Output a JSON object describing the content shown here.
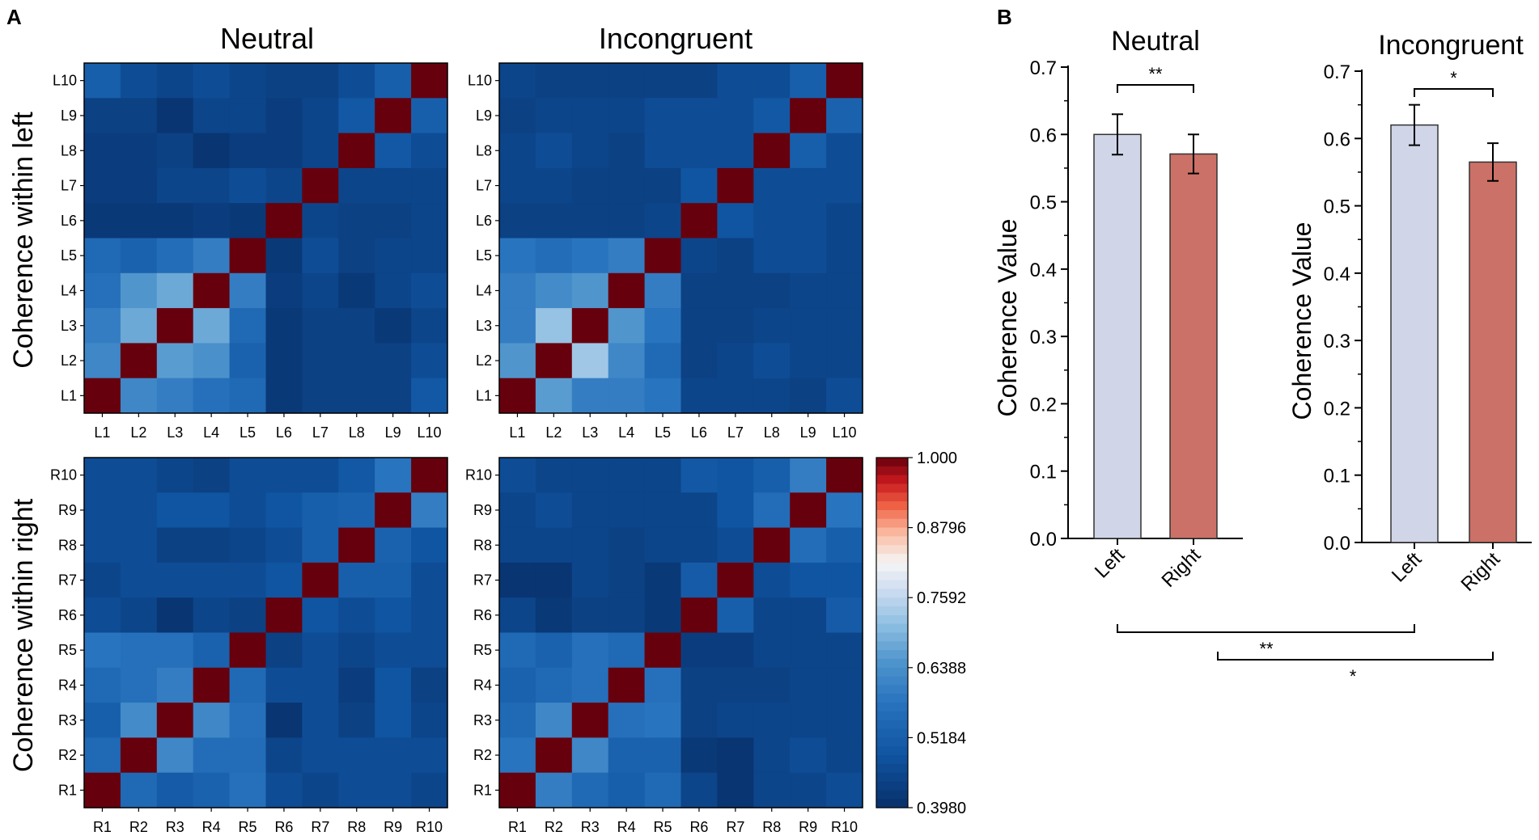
{
  "figure": {
    "panel_a_label": "A",
    "panel_b_label": "B"
  },
  "colors": {
    "bar_left": "#d0d5e8",
    "bar_right": "#cc7167"
  },
  "chart_data": [
    {
      "type": "heatmap",
      "title": "Neutral",
      "ylabel": "Coherence within left",
      "labels": [
        "L1",
        "L2",
        "L3",
        "L4",
        "L5",
        "L6",
        "L7",
        "L8",
        "L9",
        "L10"
      ],
      "matrix_rows_top_to_bottom": [
        [
          0.52,
          0.47,
          0.45,
          0.47,
          0.45,
          0.44,
          0.44,
          0.47,
          0.52,
          1.0
        ],
        [
          0.44,
          0.44,
          0.41,
          0.45,
          0.45,
          0.43,
          0.45,
          0.5,
          1.0,
          0.52
        ],
        [
          0.43,
          0.43,
          0.44,
          0.41,
          0.43,
          0.43,
          0.45,
          1.0,
          0.5,
          0.47
        ],
        [
          0.43,
          0.43,
          0.45,
          0.45,
          0.47,
          0.45,
          1.0,
          0.45,
          0.45,
          0.45
        ],
        [
          0.42,
          0.42,
          0.42,
          0.43,
          0.42,
          1.0,
          0.45,
          0.44,
          0.44,
          0.45
        ],
        [
          0.55,
          0.53,
          0.56,
          0.6,
          1.0,
          0.42,
          0.47,
          0.44,
          0.45,
          0.45
        ],
        [
          0.57,
          0.65,
          0.68,
          1.0,
          0.6,
          0.43,
          0.45,
          0.42,
          0.45,
          0.47
        ],
        [
          0.6,
          0.68,
          1.0,
          0.68,
          0.55,
          0.42,
          0.44,
          0.44,
          0.42,
          0.45
        ],
        [
          0.62,
          1.0,
          0.66,
          0.64,
          0.53,
          0.42,
          0.44,
          0.44,
          0.44,
          0.47
        ],
        [
          1.0,
          0.62,
          0.6,
          0.57,
          0.55,
          0.42,
          0.44,
          0.44,
          0.44,
          0.5
        ]
      ]
    },
    {
      "type": "heatmap",
      "title": "Incongruent",
      "ylabel": "",
      "labels": [
        "L1",
        "L2",
        "L3",
        "L4",
        "L5",
        "L6",
        "L7",
        "L8",
        "L9",
        "L10"
      ],
      "matrix_rows_top_to_bottom": [
        [
          0.45,
          0.44,
          0.44,
          0.44,
          0.44,
          0.44,
          0.47,
          0.47,
          0.52,
          1.0
        ],
        [
          0.44,
          0.45,
          0.45,
          0.45,
          0.47,
          0.47,
          0.47,
          0.5,
          1.0,
          0.53
        ],
        [
          0.45,
          0.47,
          0.45,
          0.44,
          0.47,
          0.47,
          0.47,
          1.0,
          0.52,
          0.47
        ],
        [
          0.45,
          0.45,
          0.44,
          0.44,
          0.44,
          0.49,
          1.0,
          0.47,
          0.47,
          0.47
        ],
        [
          0.44,
          0.44,
          0.44,
          0.44,
          0.45,
          1.0,
          0.49,
          0.47,
          0.47,
          0.45
        ],
        [
          0.58,
          0.56,
          0.58,
          0.6,
          1.0,
          0.45,
          0.44,
          0.47,
          0.47,
          0.45
        ],
        [
          0.6,
          0.63,
          0.65,
          1.0,
          0.6,
          0.44,
          0.44,
          0.44,
          0.45,
          0.45
        ],
        [
          0.6,
          0.72,
          1.0,
          0.65,
          0.58,
          0.44,
          0.44,
          0.45,
          0.45,
          0.45
        ],
        [
          0.65,
          1.0,
          0.73,
          0.62,
          0.55,
          0.44,
          0.45,
          0.47,
          0.45,
          0.45
        ],
        [
          1.0,
          0.66,
          0.6,
          0.6,
          0.58,
          0.45,
          0.45,
          0.45,
          0.44,
          0.47
        ]
      ]
    },
    {
      "type": "heatmap",
      "title": "",
      "ylabel": "Coherence within right",
      "labels": [
        "R1",
        "R2",
        "R3",
        "R4",
        "R5",
        "R6",
        "R7",
        "R8",
        "R9",
        "R10"
      ],
      "matrix_rows_top_to_bottom": [
        [
          0.47,
          0.47,
          0.45,
          0.44,
          0.47,
          0.47,
          0.47,
          0.5,
          0.58,
          1.0
        ],
        [
          0.47,
          0.47,
          0.49,
          0.49,
          0.47,
          0.49,
          0.52,
          0.53,
          1.0,
          0.6
        ],
        [
          0.47,
          0.47,
          0.44,
          0.44,
          0.45,
          0.47,
          0.52,
          1.0,
          0.53,
          0.49
        ],
        [
          0.45,
          0.47,
          0.47,
          0.47,
          0.47,
          0.49,
          1.0,
          0.52,
          0.52,
          0.47
        ],
        [
          0.47,
          0.45,
          0.41,
          0.45,
          0.44,
          1.0,
          0.49,
          0.47,
          0.49,
          0.47
        ],
        [
          0.58,
          0.57,
          0.57,
          0.53,
          1.0,
          0.44,
          0.47,
          0.45,
          0.47,
          0.47
        ],
        [
          0.55,
          0.57,
          0.6,
          1.0,
          0.55,
          0.47,
          0.47,
          0.43,
          0.49,
          0.44
        ],
        [
          0.52,
          0.63,
          1.0,
          0.62,
          0.57,
          0.41,
          0.47,
          0.44,
          0.49,
          0.45
        ],
        [
          0.55,
          1.0,
          0.62,
          0.56,
          0.56,
          0.45,
          0.47,
          0.47,
          0.47,
          0.47
        ],
        [
          1.0,
          0.55,
          0.51,
          0.53,
          0.57,
          0.47,
          0.45,
          0.47,
          0.47,
          0.45
        ]
      ]
    },
    {
      "type": "heatmap",
      "title": "",
      "ylabel": "",
      "labels": [
        "R1",
        "R2",
        "R3",
        "R4",
        "R5",
        "R6",
        "R7",
        "R8",
        "R9",
        "R10"
      ],
      "matrix_rows_top_to_bottom": [
        [
          0.47,
          0.45,
          0.45,
          0.45,
          0.45,
          0.5,
          0.49,
          0.52,
          0.6,
          1.0
        ],
        [
          0.45,
          0.47,
          0.45,
          0.45,
          0.45,
          0.45,
          0.49,
          0.56,
          1.0,
          0.58
        ],
        [
          0.45,
          0.45,
          0.45,
          0.44,
          0.45,
          0.45,
          0.47,
          1.0,
          0.56,
          0.52
        ],
        [
          0.41,
          0.41,
          0.45,
          0.44,
          0.42,
          0.51,
          1.0,
          0.47,
          0.49,
          0.49
        ],
        [
          0.45,
          0.42,
          0.44,
          0.44,
          0.42,
          1.0,
          0.52,
          0.45,
          0.45,
          0.51
        ],
        [
          0.55,
          0.53,
          0.57,
          0.55,
          1.0,
          0.43,
          0.43,
          0.45,
          0.45,
          0.45
        ],
        [
          0.53,
          0.55,
          0.57,
          1.0,
          0.57,
          0.44,
          0.44,
          0.44,
          0.45,
          0.45
        ],
        [
          0.55,
          0.62,
          1.0,
          0.57,
          0.58,
          0.44,
          0.45,
          0.45,
          0.45,
          0.45
        ],
        [
          0.58,
          1.0,
          0.62,
          0.53,
          0.53,
          0.42,
          0.41,
          0.45,
          0.47,
          0.45
        ],
        [
          1.0,
          0.6,
          0.55,
          0.52,
          0.55,
          0.45,
          0.41,
          0.45,
          0.45,
          0.47
        ]
      ]
    },
    {
      "type": "bar",
      "title": "Neutral",
      "ylabel": "Coherence Value",
      "categories": [
        "Left",
        "Right"
      ],
      "values": [
        0.6,
        0.571
      ],
      "errors": [
        0.03,
        0.029
      ],
      "ylim": [
        0.0,
        0.7
      ],
      "yticks": [
        "0.0",
        "0.1",
        "0.2",
        "0.3",
        "0.4",
        "0.5",
        "0.6",
        "0.7"
      ],
      "significance": "**"
    },
    {
      "type": "bar",
      "title": "Incongruent",
      "ylabel": "Coherence Value",
      "categories": [
        "Left",
        "Right"
      ],
      "values": [
        0.62,
        0.565
      ],
      "errors": [
        0.03,
        0.028
      ],
      "ylim": [
        0.0,
        0.7
      ],
      "yticks": [
        "0.0",
        "0.1",
        "0.2",
        "0.3",
        "0.4",
        "0.5",
        "0.6",
        "0.7"
      ],
      "significance": "*"
    }
  ],
  "cross_comparisons": {
    "left_vs_left": "**",
    "right_vs_right": "*"
  },
  "colorbar": {
    "min": 0.398,
    "max": 1.0,
    "ticks": [
      "1.000",
      "0.8796",
      "0.7592",
      "0.6388",
      "0.5184",
      "0.3980"
    ]
  }
}
